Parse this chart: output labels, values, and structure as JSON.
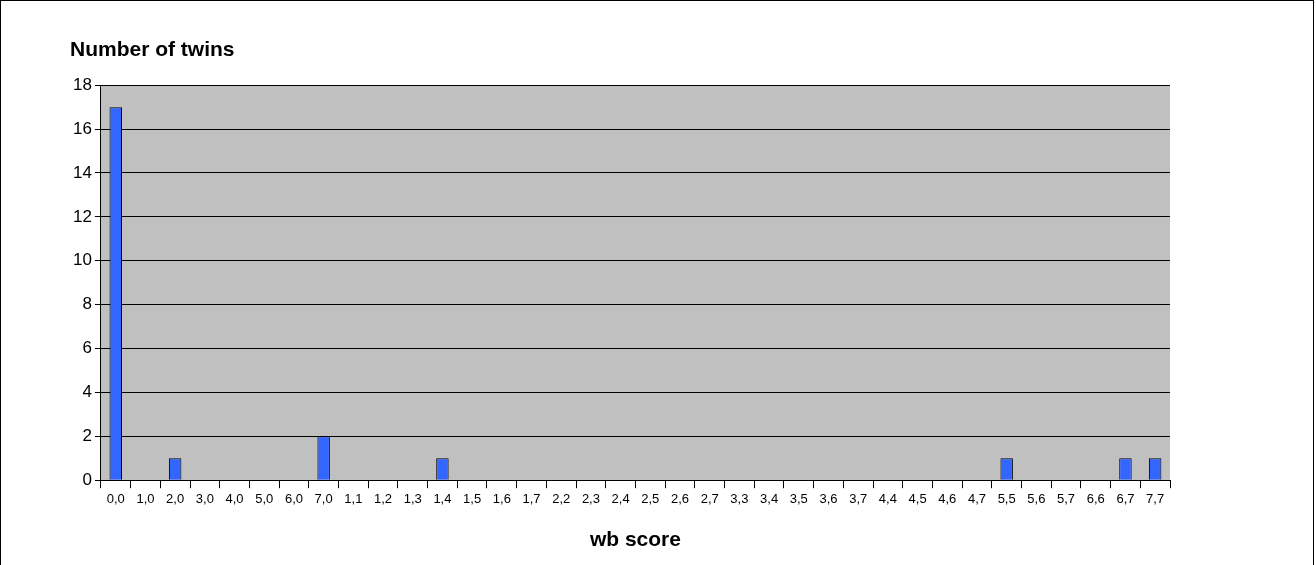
{
  "chart_data": {
    "type": "bar",
    "title": "Number of twins",
    "xlabel": "wb score",
    "categories": [
      "0,0",
      "1,0",
      "2,0",
      "3,0",
      "4,0",
      "5,0",
      "6,0",
      "7,0",
      "1,1",
      "1,2",
      "1,3",
      "1,4",
      "1,5",
      "1,6",
      "1,7",
      "2,2",
      "2,3",
      "2,4",
      "2,5",
      "2,6",
      "2,7",
      "3,3",
      "3,4",
      "3,5",
      "3,6",
      "3,7",
      "4,4",
      "4,5",
      "4,6",
      "4,7",
      "5,5",
      "5,6",
      "5,7",
      "6,6",
      "6,7",
      "7,7"
    ],
    "values": [
      17,
      0,
      1,
      0,
      0,
      0,
      0,
      2,
      0,
      0,
      0,
      1,
      0,
      0,
      0,
      0,
      0,
      0,
      0,
      0,
      0,
      0,
      0,
      0,
      0,
      0,
      0,
      0,
      0,
      0,
      1,
      0,
      0,
      0,
      1,
      1
    ],
    "color": "#3366ff",
    "ylim": [
      0,
      18
    ],
    "yticks": [
      0,
      2,
      4,
      6,
      8,
      10,
      12,
      14,
      16,
      18
    ],
    "grid": "y",
    "legend": false
  }
}
